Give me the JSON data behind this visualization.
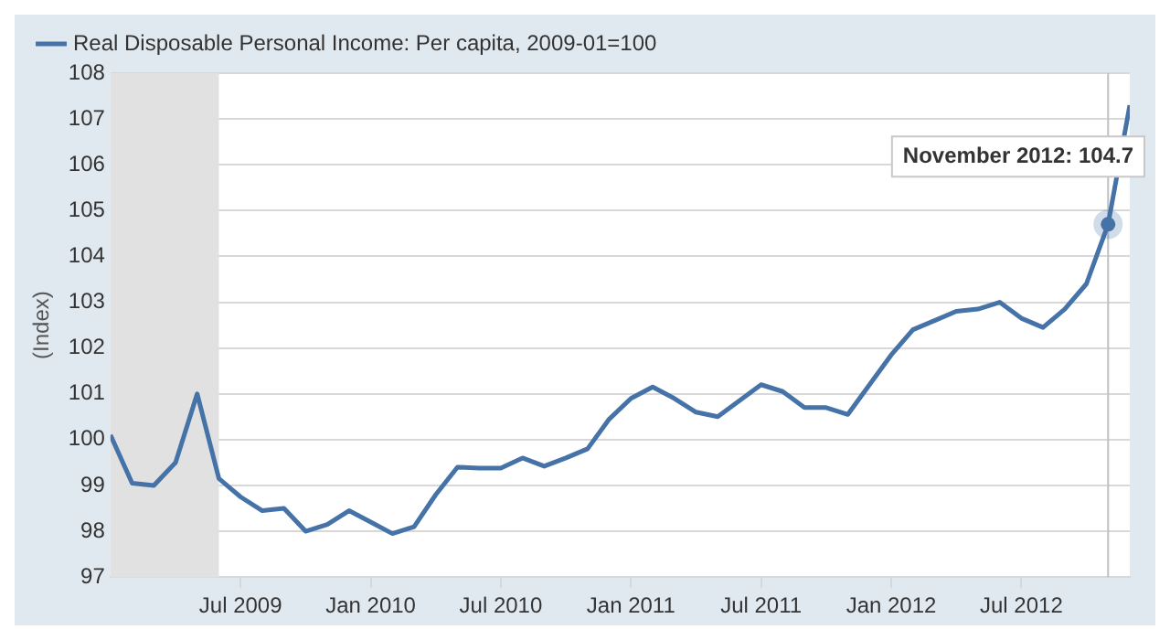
{
  "chart_data": {
    "type": "line",
    "ylabel": "(Index)",
    "x": [
      "2009-01",
      "2009-02",
      "2009-03",
      "2009-04",
      "2009-05",
      "2009-06",
      "2009-07",
      "2009-08",
      "2009-09",
      "2009-10",
      "2009-11",
      "2009-12",
      "2010-01",
      "2010-02",
      "2010-03",
      "2010-04",
      "2010-05",
      "2010-06",
      "2010-07",
      "2010-08",
      "2010-09",
      "2010-10",
      "2010-11",
      "2010-12",
      "2011-01",
      "2011-02",
      "2011-03",
      "2011-04",
      "2011-05",
      "2011-06",
      "2011-07",
      "2011-08",
      "2011-09",
      "2011-10",
      "2011-11",
      "2011-12",
      "2012-01",
      "2012-02",
      "2012-03",
      "2012-04",
      "2012-05",
      "2012-06",
      "2012-07",
      "2012-08",
      "2012-09",
      "2012-10",
      "2012-11",
      "2012-12"
    ],
    "series": [
      {
        "name": "Real Disposable Personal Income: Per capita, 2009-01=100",
        "color": "#4572a7",
        "values": [
          100.1,
          99.05,
          99.0,
          99.5,
          101.0,
          99.15,
          98.75,
          98.45,
          98.5,
          98.0,
          98.15,
          98.45,
          98.2,
          97.95,
          98.1,
          98.8,
          99.4,
          99.38,
          99.38,
          99.6,
          99.42,
          99.6,
          99.8,
          100.45,
          100.9,
          101.15,
          100.9,
          100.6,
          100.5,
          100.85,
          101.2,
          101.05,
          100.7,
          100.7,
          100.55,
          101.2,
          101.85,
          102.4,
          102.6,
          102.8,
          102.85,
          103.0,
          102.65,
          102.45,
          102.85,
          103.4,
          104.7,
          107.3
        ]
      }
    ],
    "xlim": [
      "2009-01",
      "2012-12"
    ],
    "xticks": [
      {
        "value": "2009-07",
        "label": "Jul 2009"
      },
      {
        "value": "2010-01",
        "label": "Jan 2010"
      },
      {
        "value": "2010-07",
        "label": "Jul 2010"
      },
      {
        "value": "2011-01",
        "label": "Jan 2011"
      },
      {
        "value": "2011-07",
        "label": "Jul 2011"
      },
      {
        "value": "2012-01",
        "label": "Jan 2012"
      },
      {
        "value": "2012-07",
        "label": "Jul 2012"
      }
    ],
    "ylim": [
      97,
      108
    ],
    "yticks": [
      97,
      98,
      99,
      100,
      101,
      102,
      103,
      104,
      105,
      106,
      107,
      108
    ],
    "bands": [
      {
        "axis": "x",
        "from": "2009-01",
        "to": "2009-06",
        "color": "#e1e1e1"
      }
    ],
    "ref_lines": [
      {
        "axis": "x",
        "value": "2012-11",
        "color": "#c0c0c0"
      }
    ],
    "annotations": [
      {
        "text": "November 2012: 104.7",
        "x": "2012-11",
        "y": 104.7
      }
    ],
    "grid": "y",
    "legend": "top left",
    "marker": "none",
    "line_style": "solid"
  }
}
